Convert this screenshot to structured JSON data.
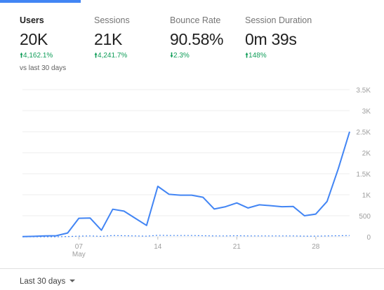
{
  "metrics": [
    {
      "name": "Users",
      "value": "20K",
      "delta": "4,162.1%",
      "delta_dir": "up",
      "compare": "vs last 30 days",
      "active": true
    },
    {
      "name": "Sessions",
      "value": "21K",
      "delta": "4,241.7%",
      "delta_dir": "up",
      "active": false
    },
    {
      "name": "Bounce Rate",
      "value": "90.58%",
      "delta": "2.3%",
      "delta_dir": "down",
      "active": false
    },
    {
      "name": "Session Duration",
      "value": "0m 39s",
      "delta": "148%",
      "delta_dir": "up",
      "active": false
    }
  ],
  "colors": {
    "accent": "#4285f4",
    "positive": "#0f9d58",
    "grid": "#eeeeee",
    "axis_text": "#9e9e9e"
  },
  "chart_data": {
    "type": "line",
    "y_ticks": [
      0,
      500,
      1000,
      1500,
      2000,
      2500,
      3000,
      3500
    ],
    "y_tick_labels": [
      "0",
      "500",
      "1K",
      "1.5K",
      "2K",
      "2.5K",
      "3K",
      "3.5K"
    ],
    "ylim": [
      0,
      3500
    ],
    "x_ticks": [
      {
        "day": 7,
        "label": "07",
        "sublabel": "May"
      },
      {
        "day": 14,
        "label": "14"
      },
      {
        "day": 21,
        "label": "21"
      },
      {
        "day": 28,
        "label": "28"
      }
    ],
    "series": [
      {
        "style": "solid",
        "x": [
          2,
          3,
          4,
          5,
          6,
          7,
          8,
          9,
          10,
          11,
          12,
          13,
          14,
          15,
          16,
          17,
          18,
          19,
          20,
          21,
          22,
          23,
          24,
          25,
          26,
          27,
          28,
          29,
          30,
          31
        ],
        "values": [
          5,
          10,
          20,
          25,
          90,
          440,
          445,
          155,
          655,
          610,
          440,
          270,
          1200,
          1010,
          990,
          990,
          940,
          660,
          715,
          805,
          685,
          760,
          740,
          715,
          720,
          500,
          540,
          840,
          1620,
          2500
        ]
      },
      {
        "style": "dashed",
        "x": [
          2,
          3,
          4,
          5,
          6,
          7,
          8,
          9,
          10,
          11,
          12,
          13,
          14,
          15,
          16,
          17,
          18,
          19,
          20,
          21,
          22,
          23,
          24,
          25,
          26,
          27,
          28,
          29,
          30,
          31
        ],
        "values": [
          0,
          0,
          0,
          0,
          5,
          15,
          20,
          10,
          30,
          25,
          20,
          15,
          35,
          30,
          30,
          30,
          25,
          20,
          20,
          25,
          20,
          20,
          20,
          20,
          20,
          15,
          15,
          20,
          25,
          30
        ]
      }
    ]
  },
  "footer": {
    "date_range": "Last 30 days"
  }
}
